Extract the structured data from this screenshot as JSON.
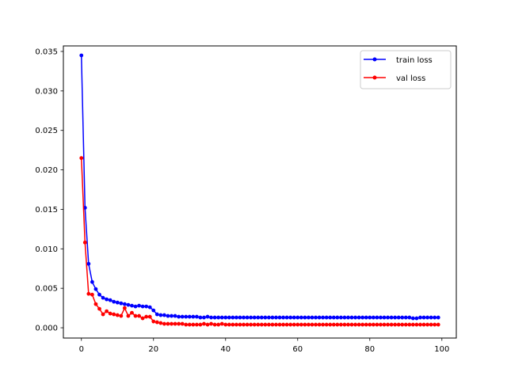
{
  "chart_data": {
    "type": "line",
    "title": "",
    "xlabel": "",
    "ylabel": "",
    "xlim": [
      -5,
      104
    ],
    "ylim": [
      -0.0013,
      0.0357
    ],
    "x_ticks": [
      0,
      20,
      40,
      60,
      80,
      100
    ],
    "y_ticks": [
      0.0,
      0.005,
      0.01,
      0.015,
      0.02,
      0.025,
      0.03,
      0.035
    ],
    "x_tick_labels": [
      "0",
      "20",
      "40",
      "60",
      "80",
      "100"
    ],
    "y_tick_labels": [
      "0.000",
      "0.005",
      "0.010",
      "0.015",
      "0.020",
      "0.025",
      "0.030",
      "0.035"
    ],
    "grid": false,
    "legend_position": "top-right",
    "series": [
      {
        "name": "train loss",
        "color": "#0000ff",
        "marker": "circle",
        "values": [
          0.0345,
          0.0152,
          0.0081,
          0.0058,
          0.0049,
          0.0042,
          0.0038,
          0.0036,
          0.0035,
          0.0033,
          0.0032,
          0.0031,
          0.003,
          0.0029,
          0.0028,
          0.0027,
          0.0028,
          0.0027,
          0.0027,
          0.0026,
          0.0022,
          0.0017,
          0.0016,
          0.0016,
          0.0015,
          0.0015,
          0.0015,
          0.0014,
          0.0014,
          0.0014,
          0.0014,
          0.0014,
          0.0014,
          0.0013,
          0.0013,
          0.0014,
          0.0013,
          0.0013,
          0.0013,
          0.0013,
          0.0013,
          0.0013,
          0.0013,
          0.0013,
          0.0013,
          0.0013,
          0.0013,
          0.0013,
          0.0013,
          0.0013,
          0.0013,
          0.0013,
          0.0013,
          0.0013,
          0.0013,
          0.0013,
          0.0013,
          0.0013,
          0.0013,
          0.0013,
          0.0013,
          0.0013,
          0.0013,
          0.0013,
          0.0013,
          0.0013,
          0.0013,
          0.0013,
          0.0013,
          0.0013,
          0.0013,
          0.0013,
          0.0013,
          0.0013,
          0.0013,
          0.0013,
          0.0013,
          0.0013,
          0.0013,
          0.0013,
          0.0013,
          0.0013,
          0.0013,
          0.0013,
          0.0013,
          0.0013,
          0.0013,
          0.0013,
          0.0013,
          0.0013,
          0.0013,
          0.0013,
          0.0012,
          0.0012,
          0.0013,
          0.0013,
          0.0013,
          0.0013,
          0.0013,
          0.0013
        ]
      },
      {
        "name": "val loss",
        "color": "#ff0000",
        "marker": "circle",
        "values": [
          0.0215,
          0.0108,
          0.0043,
          0.0042,
          0.003,
          0.0024,
          0.0017,
          0.0021,
          0.0018,
          0.0017,
          0.0016,
          0.0015,
          0.0025,
          0.0015,
          0.0019,
          0.0015,
          0.0015,
          0.0012,
          0.0014,
          0.0014,
          0.0008,
          0.0007,
          0.0006,
          0.0005,
          0.0005,
          0.0005,
          0.0005,
          0.0005,
          0.0005,
          0.0004,
          0.0004,
          0.0004,
          0.0004,
          0.0004,
          0.0005,
          0.0004,
          0.0005,
          0.0004,
          0.0004,
          0.0005,
          0.0004,
          0.0004,
          0.0004,
          0.0004,
          0.0004,
          0.0004,
          0.0004,
          0.0004,
          0.0004,
          0.0004,
          0.0004,
          0.0004,
          0.0004,
          0.0004,
          0.0004,
          0.0004,
          0.0004,
          0.0004,
          0.0004,
          0.0004,
          0.0004,
          0.0004,
          0.0004,
          0.0004,
          0.0004,
          0.0004,
          0.0004,
          0.0004,
          0.0004,
          0.0004,
          0.0004,
          0.0004,
          0.0004,
          0.0004,
          0.0004,
          0.0004,
          0.0004,
          0.0004,
          0.0004,
          0.0004,
          0.0004,
          0.0004,
          0.0004,
          0.0004,
          0.0004,
          0.0004,
          0.0004,
          0.0004,
          0.0004,
          0.0004,
          0.0004,
          0.0004,
          0.0004,
          0.0004,
          0.0004,
          0.0004,
          0.0004,
          0.0004,
          0.0004,
          0.0004
        ]
      }
    ]
  }
}
